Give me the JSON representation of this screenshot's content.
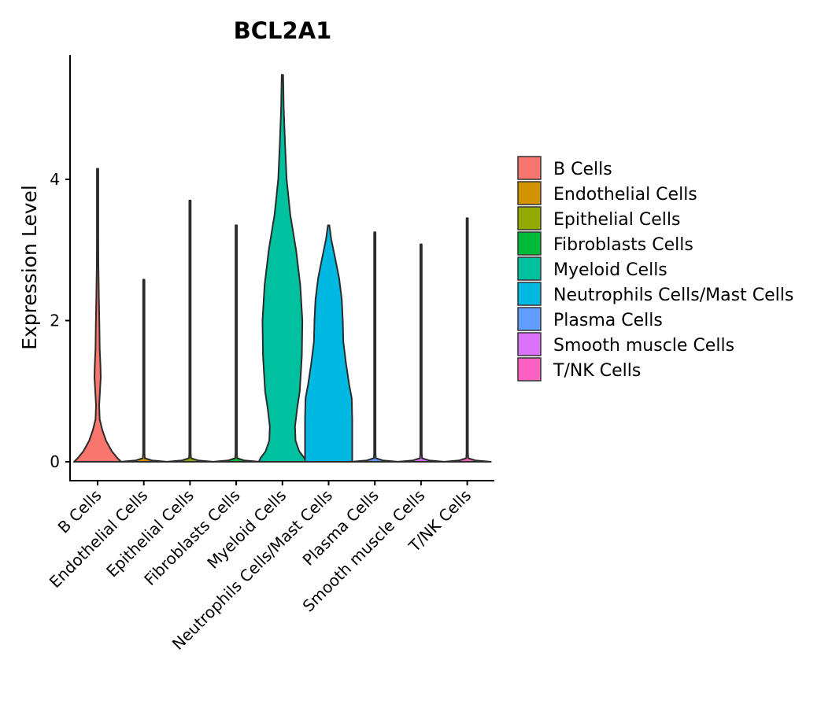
{
  "chart_data": {
    "type": "violin",
    "title": "BCL2A1",
    "xlabel": "",
    "ylabel": "Expression Level",
    "ylim": [
      -0.3,
      5.75
    ],
    "yticks": [
      0,
      2,
      4
    ],
    "grid": false,
    "legend_position": "right",
    "categories": [
      "B Cells",
      "Endothelial Cells",
      "Epithelial Cells",
      "Fibroblasts Cells",
      "Myeloid Cells",
      "Neutrophils Cells/Mast Cells",
      "Plasma Cells",
      "Smooth muscle Cells",
      "T/NK Cells"
    ],
    "colors": [
      "#F8766D",
      "#D39200",
      "#93AA00",
      "#00BA38",
      "#00C19F",
      "#00B9E3",
      "#619CFF",
      "#DB72FB",
      "#FF61C3"
    ],
    "series": [
      {
        "name": "B Cells",
        "max": 4.15,
        "density": [
          [
            0,
            0.45
          ],
          [
            0.05,
            0.38
          ],
          [
            0.15,
            0.27
          ],
          [
            0.3,
            0.16
          ],
          [
            0.45,
            0.09
          ],
          [
            0.6,
            0.04
          ],
          [
            0.8,
            0.03
          ],
          [
            1.0,
            0.045
          ],
          [
            1.2,
            0.06
          ],
          [
            1.35,
            0.055
          ],
          [
            1.6,
            0.04
          ],
          [
            1.9,
            0.035
          ],
          [
            2.3,
            0.025
          ],
          [
            2.8,
            0.015
          ],
          [
            3.2,
            0.008
          ],
          [
            3.6,
            0.004
          ],
          [
            4.15,
            0.0
          ]
        ]
      },
      {
        "name": "Endothelial Cells",
        "max": 2.58,
        "density": [
          [
            0,
            0.45
          ],
          [
            0.02,
            0.15
          ],
          [
            0.05,
            0.02
          ],
          [
            0.12,
            0.005
          ],
          [
            2.58,
            0.0
          ]
        ]
      },
      {
        "name": "Epithelial Cells",
        "max": 3.7,
        "density": [
          [
            0,
            0.45
          ],
          [
            0.02,
            0.15
          ],
          [
            0.05,
            0.02
          ],
          [
            0.12,
            0.005
          ],
          [
            3.7,
            0.0
          ]
        ]
      },
      {
        "name": "Fibroblasts Cells",
        "max": 3.35,
        "density": [
          [
            0,
            0.45
          ],
          [
            0.02,
            0.15
          ],
          [
            0.05,
            0.02
          ],
          [
            0.12,
            0.005
          ],
          [
            3.35,
            0.0
          ]
        ]
      },
      {
        "name": "Myeloid Cells",
        "max": 5.48,
        "density": [
          [
            0,
            0.45
          ],
          [
            0.05,
            0.42
          ],
          [
            0.15,
            0.32
          ],
          [
            0.3,
            0.25
          ],
          [
            0.5,
            0.24
          ],
          [
            0.75,
            0.28
          ],
          [
            1.0,
            0.33
          ],
          [
            1.5,
            0.37
          ],
          [
            2.0,
            0.38
          ],
          [
            2.5,
            0.34
          ],
          [
            3.0,
            0.26
          ],
          [
            3.5,
            0.15
          ],
          [
            4.0,
            0.08
          ],
          [
            4.5,
            0.05
          ],
          [
            5.0,
            0.025
          ],
          [
            5.48,
            0.0
          ]
        ]
      },
      {
        "name": "Neutrophils Cells/Mast Cells",
        "max": 3.35,
        "density": [
          [
            0,
            0.45
          ],
          [
            0.1,
            0.45
          ],
          [
            0.3,
            0.45
          ],
          [
            0.6,
            0.45
          ],
          [
            0.9,
            0.44
          ],
          [
            1.1,
            0.39
          ],
          [
            1.4,
            0.33
          ],
          [
            1.7,
            0.28
          ],
          [
            2.0,
            0.27
          ],
          [
            2.3,
            0.25
          ],
          [
            2.6,
            0.2
          ],
          [
            2.9,
            0.12
          ],
          [
            3.15,
            0.05
          ],
          [
            3.35,
            0.0
          ]
        ]
      },
      {
        "name": "Plasma Cells",
        "max": 3.25,
        "density": [
          [
            0,
            0.45
          ],
          [
            0.02,
            0.15
          ],
          [
            0.05,
            0.02
          ],
          [
            0.12,
            0.005
          ],
          [
            3.25,
            0.0
          ]
        ]
      },
      {
        "name": "Smooth muscle Cells",
        "max": 3.08,
        "density": [
          [
            0,
            0.45
          ],
          [
            0.02,
            0.15
          ],
          [
            0.05,
            0.02
          ],
          [
            0.12,
            0.005
          ],
          [
            3.08,
            0.0
          ]
        ]
      },
      {
        "name": "T/NK Cells",
        "max": 3.45,
        "density": [
          [
            0,
            0.45
          ],
          [
            0.02,
            0.15
          ],
          [
            0.05,
            0.02
          ],
          [
            0.12,
            0.005
          ],
          [
            3.45,
            0.0
          ]
        ]
      }
    ],
    "legend": [
      "B Cells",
      "Endothelial Cells",
      "Epithelial Cells",
      "Fibroblasts Cells",
      "Myeloid Cells",
      "Neutrophils Cells/Mast Cells",
      "Plasma Cells",
      "Smooth muscle Cells",
      "T/NK Cells"
    ]
  }
}
